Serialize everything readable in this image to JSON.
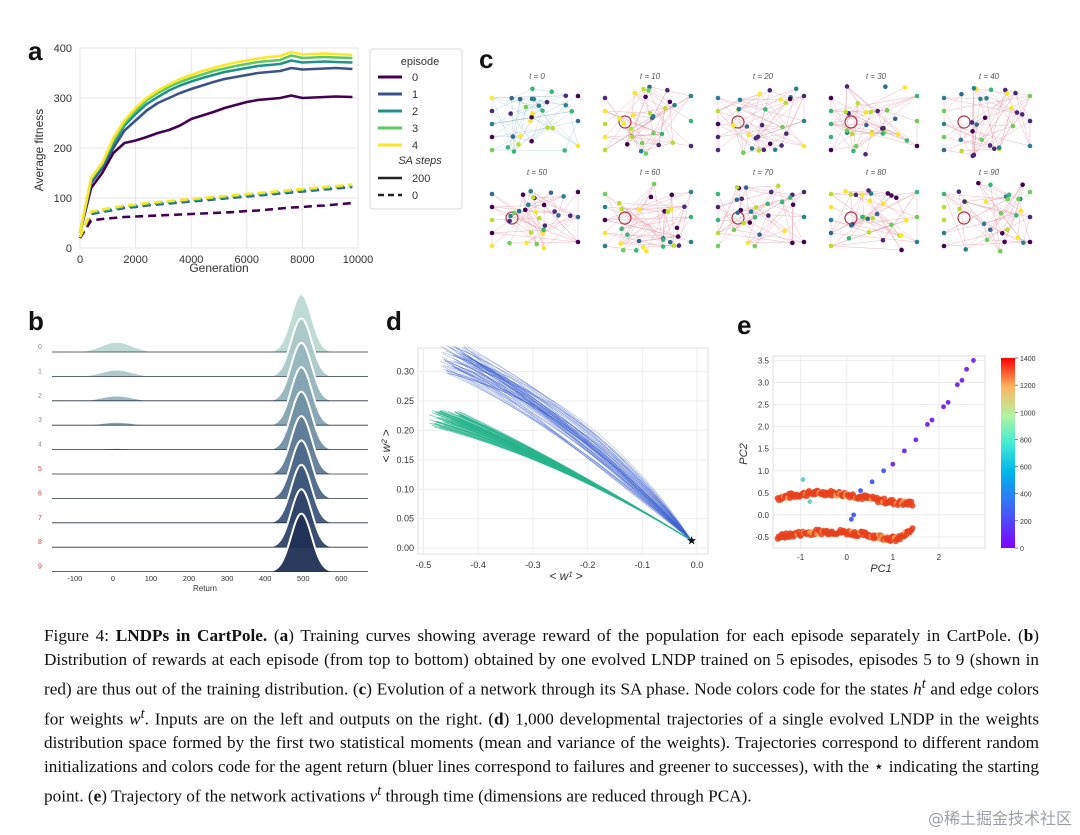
{
  "panels": {
    "a": {
      "label": "a",
      "chart_data": {
        "type": "line",
        "ylabel": "Average fitness",
        "xlabel": "Generation",
        "xlim": [
          0,
          10000
        ],
        "ylim": [
          0,
          400
        ],
        "xticks": [
          0,
          2000,
          4000,
          6000,
          8000,
          10000
        ],
        "yticks": [
          0,
          100,
          200,
          300,
          400
        ],
        "grid": true,
        "legend": {
          "placement": "right",
          "title1": "episode",
          "entries": [
            {
              "name": "0",
              "color": "#440154"
            },
            {
              "name": "1",
              "color": "#3b528b"
            },
            {
              "name": "2",
              "color": "#21918c"
            },
            {
              "name": "3",
              "color": "#5ec962"
            },
            {
              "name": "4",
              "color": "#fde725"
            }
          ],
          "title2": "SA steps",
          "styles": [
            {
              "name": "200",
              "dash": "solid"
            },
            {
              "name": "0",
              "dash": "dashed"
            }
          ]
        },
        "x": [
          0,
          400,
          800,
          1200,
          1600,
          2000,
          2400,
          2800,
          3200,
          3600,
          4000,
          4400,
          4800,
          5200,
          5600,
          6000,
          6400,
          6800,
          7200,
          7600,
          8000,
          8400,
          8800,
          9200,
          9800
        ],
        "series": [
          {
            "name": "0",
            "steps": "200",
            "color": "#440154",
            "values": [
              30,
              120,
              150,
              190,
              210,
              215,
              222,
              230,
              236,
              245,
              258,
              265,
              272,
              280,
              286,
              292,
              296,
              298,
              300,
              305,
              300,
              301,
              302,
              303,
              302
            ]
          },
          {
            "name": "1",
            "steps": "200",
            "color": "#3b528b",
            "values": [
              30,
              130,
              160,
              200,
              235,
              255,
              275,
              290,
              300,
              310,
              318,
              325,
              332,
              338,
              342,
              346,
              350,
              352,
              354,
              360,
              357,
              358,
              359,
              360,
              358
            ]
          },
          {
            "name": "2",
            "steps": "200",
            "color": "#21918c",
            "values": [
              30,
              135,
              165,
              210,
              245,
              268,
              288,
              302,
              315,
              325,
              333,
              340,
              346,
              352,
              356,
              360,
              364,
              366,
              368,
              375,
              371,
              372,
              373,
              372,
              371
            ]
          },
          {
            "name": "3",
            "steps": "200",
            "color": "#5ec962",
            "values": [
              30,
              138,
              168,
              215,
              250,
              275,
              296,
              310,
              322,
              332,
              340,
              347,
              354,
              359,
              364,
              368,
              372,
              374,
              376,
              385,
              380,
              381,
              382,
              381,
              380
            ]
          },
          {
            "name": "4",
            "steps": "200",
            "color": "#fde725",
            "values": [
              30,
              140,
              170,
              220,
              255,
              280,
              300,
              315,
              327,
              338,
              346,
              354,
              360,
              366,
              371,
              375,
              379,
              382,
              384,
              392,
              387,
              388,
              389,
              388,
              386
            ]
          },
          {
            "name": "0",
            "steps": "0",
            "color": "#440154",
            "values": [
              20,
              55,
              58,
              60,
              62,
              63,
              64,
              65,
              66,
              67,
              68,
              69,
              70,
              71,
              72,
              74,
              75,
              77,
              79,
              81,
              82,
              84,
              85,
              87,
              90
            ]
          },
          {
            "name": "1",
            "steps": "0",
            "color": "#3b528b",
            "values": [
              22,
              68,
              72,
              76,
              80,
              82,
              85,
              87,
              89,
              91,
              93,
              95,
              97,
              99,
              101,
              103,
              105,
              107,
              109,
              111,
              113,
              115,
              117,
              119,
              122
            ]
          },
          {
            "name": "2",
            "steps": "0",
            "color": "#21918c",
            "values": [
              22,
              70,
              74,
              78,
              82,
              84,
              87,
              89,
              91,
              93,
              95,
              97,
              99,
              101,
              103,
              105,
              107,
              109,
              111,
              113,
              115,
              117,
              119,
              121,
              124
            ]
          },
          {
            "name": "3",
            "steps": "0",
            "color": "#5ec962",
            "values": [
              22,
              72,
              76,
              80,
              84,
              86,
              89,
              91,
              93,
              95,
              97,
              99,
              101,
              103,
              105,
              107,
              109,
              111,
              113,
              115,
              117,
              119,
              121,
              123,
              126
            ]
          },
          {
            "name": "4",
            "steps": "0",
            "color": "#fde725",
            "values": [
              22,
              73,
              77,
              81,
              85,
              87,
              90,
              92,
              94,
              96,
              98,
              100,
              102,
              104,
              106,
              108,
              110,
              112,
              114,
              116,
              118,
              120,
              122,
              124,
              127
            ]
          }
        ]
      }
    },
    "c": {
      "label": "c",
      "frames": [
        "t = 0",
        "t = 10",
        "t = 20",
        "t = 30",
        "t = 40",
        "t = 50",
        "t = 60",
        "t = 70",
        "t = 80",
        "t = 90"
      ],
      "node_colors": [
        "#440154",
        "#31688e",
        "#35b779",
        "#fde725",
        "#26828e",
        "#6ece58",
        "#b8de29",
        "#482878"
      ]
    },
    "b": {
      "label": "b",
      "chart_data": {
        "type": "area",
        "xlabel": "Return",
        "xticks": [
          -100,
          0,
          100,
          200,
          300,
          400,
          500,
          600
        ],
        "xlim": [
          -160,
          670
        ],
        "rows": [
          {
            "label": "0",
            "label_color": "#8a8a8a",
            "fill": "#bcd9d3",
            "low_mass": 0.42,
            "high_mass": 1.0
          },
          {
            "label": "1",
            "label_color": "#8a8a8a",
            "fill": "#aac8c8",
            "low_mass": 0.28,
            "high_mass": 1.0
          },
          {
            "label": "2",
            "label_color": "#8a8a8a",
            "fill": "#96b6bd",
            "low_mass": 0.22,
            "high_mass": 1.0
          },
          {
            "label": "3",
            "label_color": "#8a8a8a",
            "fill": "#83a3b1",
            "low_mass": 0.14,
            "high_mass": 1.0
          },
          {
            "label": "4",
            "label_color": "#8a8a8a",
            "fill": "#7190a5",
            "low_mass": 0.07,
            "high_mass": 1.0
          },
          {
            "label": "5",
            "label_color": "#d04040",
            "fill": "#5f7c98",
            "low_mass": 0.03,
            "high_mass": 1.0
          },
          {
            "label": "6",
            "label_color": "#d04040",
            "fill": "#4d698a",
            "low_mass": 0.03,
            "high_mass": 1.0
          },
          {
            "label": "7",
            "label_color": "#d04040",
            "fill": "#3d5679",
            "low_mass": 0.01,
            "high_mass": 1.0
          },
          {
            "label": "8",
            "label_color": "#d04040",
            "fill": "#2e4468",
            "low_mass": 0.01,
            "high_mass": 1.0
          },
          {
            "label": "9",
            "label_color": "#d04040",
            "fill": "#1f3054",
            "low_mass": 0.0,
            "high_mass": 1.0
          }
        ]
      }
    },
    "d": {
      "label": "d",
      "chart_data": {
        "type": "line",
        "xlabel": "< w¹ >",
        "ylabel": "< w² >",
        "xlim": [
          -0.51,
          0.02
        ],
        "ylim": [
          -0.01,
          0.34
        ],
        "xticks": [
          -0.5,
          -0.4,
          -0.3,
          -0.2,
          -0.1,
          0.0
        ],
        "yticks": [
          0.0,
          0.05,
          0.1,
          0.15,
          0.2,
          0.25,
          0.3
        ],
        "grid": true,
        "start_point": {
          "x": -0.01,
          "y": 0.013,
          "marker": "★"
        },
        "bundles": [
          {
            "name": "blue",
            "color": "#3a5fcd",
            "start": [
              -0.44,
              0.32
            ],
            "spread": 0.05
          },
          {
            "name": "green",
            "color": "#28b48c",
            "start": [
              -0.46,
              0.22
            ],
            "spread": 0.03
          }
        ]
      }
    },
    "e": {
      "label": "e",
      "chart_data": {
        "type": "scatter",
        "xlabel": "PC1",
        "ylabel": "PC2",
        "xlim": [
          -1.6,
          3.0
        ],
        "ylim": [
          -0.75,
          3.6
        ],
        "xticks": [
          -1,
          0,
          1,
          2
        ],
        "yticks": [
          -0.5,
          0.0,
          0.5,
          1.0,
          1.5,
          2.0,
          2.5,
          3.0,
          3.5
        ],
        "grid": true,
        "colorbar": {
          "min": 0,
          "max": 1400,
          "ticks": [
            0,
            200,
            400,
            600,
            800,
            1000,
            1200,
            1400
          ]
        },
        "early_points": [
          {
            "x": 2.75,
            "y": 3.5
          },
          {
            "x": 2.6,
            "y": 3.3
          },
          {
            "x": 2.5,
            "y": 3.05
          },
          {
            "x": 2.4,
            "y": 2.95
          },
          {
            "x": 2.2,
            "y": 2.55
          },
          {
            "x": 2.1,
            "y": 2.45
          },
          {
            "x": 1.85,
            "y": 2.15
          },
          {
            "x": 1.75,
            "y": 2.05
          },
          {
            "x": 1.5,
            "y": 1.7
          },
          {
            "x": 1.25,
            "y": 1.45
          },
          {
            "x": 1.0,
            "y": 1.15
          },
          {
            "x": 0.8,
            "y": 1.0
          },
          {
            "x": 0.55,
            "y": 0.75
          },
          {
            "x": 0.3,
            "y": 0.55
          },
          {
            "x": 0.1,
            "y": -0.1
          },
          {
            "x": 0.15,
            "y": 0.0
          },
          {
            "x": -0.8,
            "y": 0.3
          },
          {
            "x": -0.95,
            "y": 0.8
          }
        ]
      }
    }
  },
  "caption": {
    "prefix": "Figure 4: ",
    "title": "LNDPs in CartPole.",
    "a_open": " (",
    "a_letter": "a",
    "a_text": ") Training curves showing average reward of the population for each episode separately in CartPole. (",
    "b_letter": "b",
    "b_text": ") Distribution of rewards at each episode (from top to bottom) obtained by one evolved LNDP trained on 5 episodes, episodes 5 to 9 (shown in red) are thus out of the training distribution. (",
    "c_letter": "c",
    "c_text1": ") Evolution of a network through its SA phase. Node colors code for the states ",
    "h_sym": "h",
    "c_text2": " and edge colors for weights ",
    "w_sym": "w",
    "c_text3": ". Inputs are on the left and outputs on the right. (",
    "d_letter": "d",
    "d_text": ") 1,000 developmental trajectories of a single evolved LNDP in the weights distribution space formed by the first two statistical moments (mean and variance of the weights). Trajectories correspond to different random initializations and colors code for the agent return (bluer lines correspond to failures and greener to successes), with the ⋆ indicating the starting point. (",
    "e_letter": "e",
    "e_text1": ") Trajectory of the network activations ",
    "v_sym": "v",
    "e_text2": " through time (dimensions are reduced through PCA).",
    "t_sup": "t"
  },
  "watermark": "@稀土掘金技术社区"
}
